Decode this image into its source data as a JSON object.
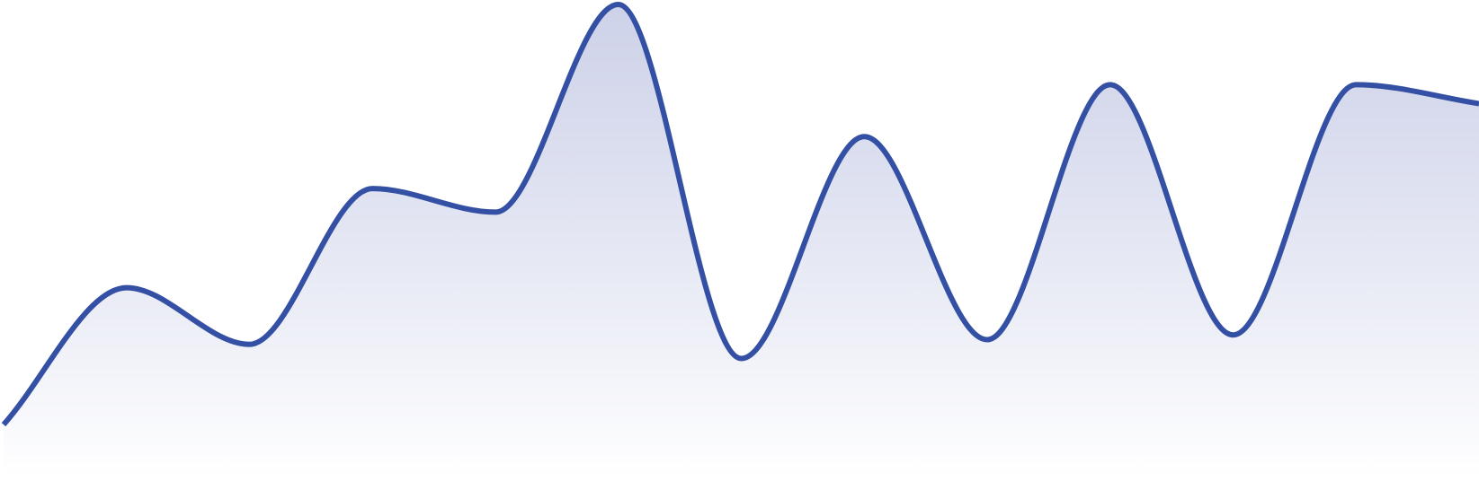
{
  "chart_data": {
    "type": "area",
    "title": "",
    "xlabel": "",
    "ylabel": "",
    "grid": false,
    "legend": "none",
    "x": [
      0,
      1,
      2,
      3,
      4,
      5,
      6,
      7,
      8,
      9,
      10,
      11,
      12
    ],
    "ylim": [
      0,
      100
    ],
    "series": [
      {
        "values": [
          11,
          40,
          28,
          61,
          56,
          100,
          25,
          72,
          29,
          83,
          30,
          83,
          79
        ]
      }
    ],
    "colors": {
      "line": "#3450A4",
      "fill_top": "#C5CAE5",
      "fill_bottom": "#FFFFFF"
    }
  }
}
